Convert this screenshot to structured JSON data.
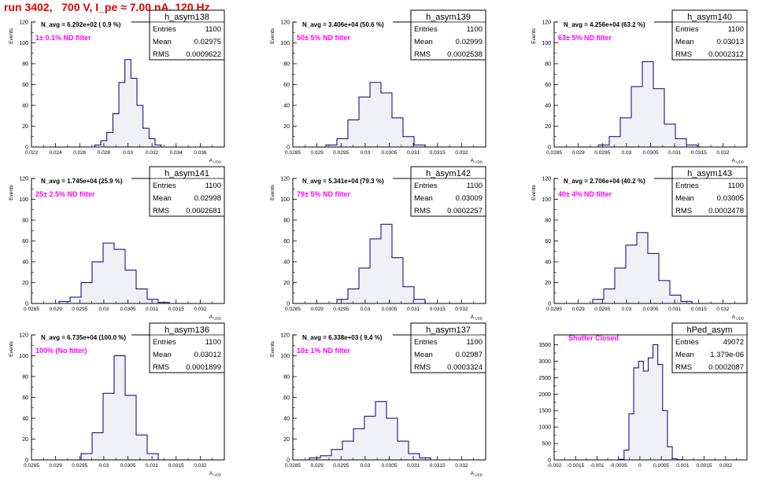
{
  "page": {
    "title": "run 3402,   700 V, I_pe ≈ 7.00 nA, 120 Hz",
    "title_color": "#e00000"
  },
  "colors": {
    "hist": "#00007f",
    "annotation": "#ff00ff",
    "text": "#000000"
  },
  "stats_labels": {
    "entries": "Entries",
    "mean": "Mean",
    "rms": "RMS"
  },
  "chart_data": [
    {
      "type": "bar",
      "name": "h_asym138",
      "navg": "N_avg = 6.292e+02 ( 0.9 %)",
      "annotation": "1± 0.1% ND filter",
      "entries": "1100",
      "mean": "0.02975",
      "rms": "0.0009622",
      "ylabel": "Events",
      "xlabel": "A_UDD",
      "xlim": [
        0.022,
        0.038
      ],
      "ylim": [
        0,
        120
      ],
      "yticks": [
        0,
        20,
        40,
        60,
        80,
        100,
        120
      ],
      "xticks": [
        "0.022",
        "0.024",
        "0.026",
        "0.028",
        "0.03",
        "0.032",
        "0.034",
        "0.036"
      ],
      "x": [
        0.027,
        0.0275,
        0.028,
        0.0285,
        0.029,
        0.0295,
        0.03,
        0.0305,
        0.031,
        0.0315,
        0.032,
        0.0325
      ],
      "y": [
        0,
        2,
        6,
        14,
        32,
        62,
        84,
        66,
        40,
        18,
        8,
        2
      ]
    },
    {
      "type": "bar",
      "name": "h_asym139",
      "navg": "N_avg = 3.406e+04 (50.6 %)",
      "annotation": "50± 5% ND filter",
      "entries": "1100",
      "mean": "0.02999",
      "rms": "0.0002538",
      "ylabel": "Events",
      "xlabel": "A_UDD",
      "xlim": [
        0.0285,
        0.032
      ],
      "ylim": [
        0,
        120
      ],
      "yticks": [
        0,
        20,
        40,
        60,
        80,
        100,
        120
      ],
      "xticks": [
        "0.0285",
        "0.029",
        "0.0295",
        "0.03",
        "0.0305",
        "0.031",
        "0.0315",
        "0.032"
      ],
      "x": [
        0.0292,
        0.0294,
        0.0296,
        0.0298,
        0.03,
        0.0302,
        0.0304,
        0.0306,
        0.0308
      ],
      "y": [
        2,
        8,
        26,
        48,
        62,
        52,
        28,
        10,
        2
      ]
    },
    {
      "type": "bar",
      "name": "h_asym140",
      "navg": "N_avg = 4.256e+04 (63.2 %)",
      "annotation": "63± 5% ND filter",
      "entries": "1100",
      "mean": "0.03013",
      "rms": "0.0002312",
      "ylabel": "Events",
      "xlabel": "A_UDD",
      "xlim": [
        0.0285,
        0.032
      ],
      "ylim": [
        0,
        120
      ],
      "yticks": [
        0,
        20,
        40,
        60,
        80,
        100,
        120
      ],
      "xticks": [
        "0.0285",
        "0.029",
        "0.0295",
        "0.03",
        "0.0305",
        "0.031",
        "0.0315",
        "0.032"
      ],
      "x": [
        0.0294,
        0.0296,
        0.0298,
        0.03,
        0.0302,
        0.0304,
        0.0306,
        0.0308,
        0.031
      ],
      "y": [
        2,
        10,
        28,
        58,
        82,
        56,
        22,
        8,
        2
      ]
    },
    {
      "type": "bar",
      "name": "h_asym141",
      "navg": "N_avg = 1.745e+04 (25.9 %)",
      "annotation": "25± 2.5% ND filter",
      "entries": "1100",
      "mean": "0.02998",
      "rms": "0.0002681",
      "ylabel": "Events",
      "xlabel": "A_UDD",
      "xlim": [
        0.0285,
        0.032
      ],
      "ylim": [
        0,
        120
      ],
      "yticks": [
        0,
        20,
        40,
        60,
        80,
        100,
        120
      ],
      "xticks": [
        "0.0285",
        "0.029",
        "0.0295",
        "0.03",
        "0.0305",
        "0.031",
        "0.0315",
        "0.032"
      ],
      "x": [
        0.0291,
        0.0293,
        0.0295,
        0.0297,
        0.0299,
        0.0301,
        0.0303,
        0.0305,
        0.0307,
        0.0309
      ],
      "y": [
        2,
        6,
        20,
        40,
        58,
        52,
        32,
        14,
        4,
        1
      ]
    },
    {
      "type": "bar",
      "name": "h_asym142",
      "navg": "N_avg = 5.341e+04 (79.3 %)",
      "annotation": "79± 5% ND filter",
      "entries": "1100",
      "mean": "0.03009",
      "rms": "0.0002257",
      "ylabel": "Events",
      "xlabel": "A_UDD",
      "xlim": [
        0.0285,
        0.032
      ],
      "ylim": [
        0,
        120
      ],
      "yticks": [
        0,
        20,
        40,
        60,
        80,
        100,
        120
      ],
      "xticks": [
        "0.0285",
        "0.029",
        "0.0295",
        "0.03",
        "0.0305",
        "0.031",
        "0.0315",
        "0.032"
      ],
      "x": [
        0.0294,
        0.0296,
        0.0298,
        0.03,
        0.0302,
        0.0304,
        0.0306,
        0.0308
      ],
      "y": [
        4,
        14,
        34,
        62,
        76,
        44,
        16,
        4
      ]
    },
    {
      "type": "bar",
      "name": "h_asym143",
      "navg": "N_avg = 2.706e+04 (40.2 %)",
      "annotation": "40± 4% ND filter",
      "entries": "1100",
      "mean": "0.03005",
      "rms": "0.0002478",
      "ylabel": "Events",
      "xlabel": "A_UDD",
      "xlim": [
        0.0285,
        0.032
      ],
      "ylim": [
        0,
        120
      ],
      "yticks": [
        0,
        20,
        40,
        60,
        80,
        100,
        120
      ],
      "xticks": [
        "0.0285",
        "0.029",
        "0.0295",
        "0.03",
        "0.0305",
        "0.031",
        "0.0315",
        "0.032"
      ],
      "x": [
        0.0293,
        0.0295,
        0.0297,
        0.0299,
        0.0301,
        0.0303,
        0.0305,
        0.0307,
        0.0309
      ],
      "y": [
        4,
        14,
        34,
        56,
        68,
        48,
        22,
        8,
        2
      ]
    },
    {
      "type": "bar",
      "name": "h_asym136",
      "navg": "N_avg = 6.735e+04 (100.0 %)",
      "annotation": "100% (No filter)",
      "entries": "1100",
      "mean": "0.03012",
      "rms": "0.0001899",
      "ylabel": "Events",
      "xlabel": "A_UDD",
      "xlim": [
        0.0285,
        0.032
      ],
      "ylim": [
        0,
        120
      ],
      "yticks": [
        0,
        20,
        40,
        60,
        80,
        100,
        120
      ],
      "xticks": [
        "0.0285",
        "0.029",
        "0.0295",
        "0.03",
        "0.0305",
        "0.031",
        "0.0315",
        "0.032"
      ],
      "x": [
        0.0295,
        0.0297,
        0.0299,
        0.0301,
        0.0303,
        0.0305,
        0.0307
      ],
      "y": [
        6,
        26,
        64,
        100,
        62,
        24,
        6
      ]
    },
    {
      "type": "bar",
      "name": "h_asym137",
      "navg": "N_avg = 6.338e+03 ( 9.4 %)",
      "annotation": "10± 1% ND filter",
      "entries": "1100",
      "mean": "0.02987",
      "rms": "0.0003324",
      "ylabel": "Events",
      "xlabel": "A_UDD",
      "xlim": [
        0.0285,
        0.032
      ],
      "ylim": [
        0,
        120
      ],
      "yticks": [
        0,
        20,
        40,
        60,
        80,
        100,
        120
      ],
      "xticks": [
        "0.0285",
        "0.029",
        "0.0295",
        "0.03",
        "0.0305",
        "0.031",
        "0.0315",
        "0.032"
      ],
      "x": [
        0.0289,
        0.0291,
        0.0293,
        0.0295,
        0.0297,
        0.0299,
        0.0301,
        0.0303,
        0.0305,
        0.0307,
        0.0309
      ],
      "y": [
        2,
        4,
        10,
        18,
        30,
        42,
        56,
        40,
        18,
        6,
        2
      ]
    },
    {
      "type": "bar",
      "name": "hPed_asym",
      "navg": "",
      "annotation": "Shutter Closed",
      "entries": "49072",
      "mean": "1.379e-06",
      "rms": "0.0002087",
      "ylabel": "",
      "xlabel": "",
      "xlim": [
        -0.002,
        0.002
      ],
      "ylim": [
        0,
        3800
      ],
      "yticks": [
        0,
        500,
        1000,
        1500,
        2000,
        2500,
        3000,
        3500
      ],
      "xticks": [
        "-0.002",
        "-0.0015",
        "-0.001",
        "-0.0005",
        "0",
        "0.0005",
        "0.001",
        "0.0015",
        "0.002"
      ],
      "x": [
        -0.0006,
        -0.0005,
        -0.0004,
        -0.0003,
        -0.0002,
        -0.0001,
        0.0,
        0.0001,
        0.0002,
        0.0003,
        0.0004,
        0.0005,
        0.0006
      ],
      "y": [
        20,
        300,
        1400,
        2800,
        3000,
        2700,
        3100,
        3500,
        2900,
        1500,
        400,
        40,
        10
      ]
    }
  ]
}
